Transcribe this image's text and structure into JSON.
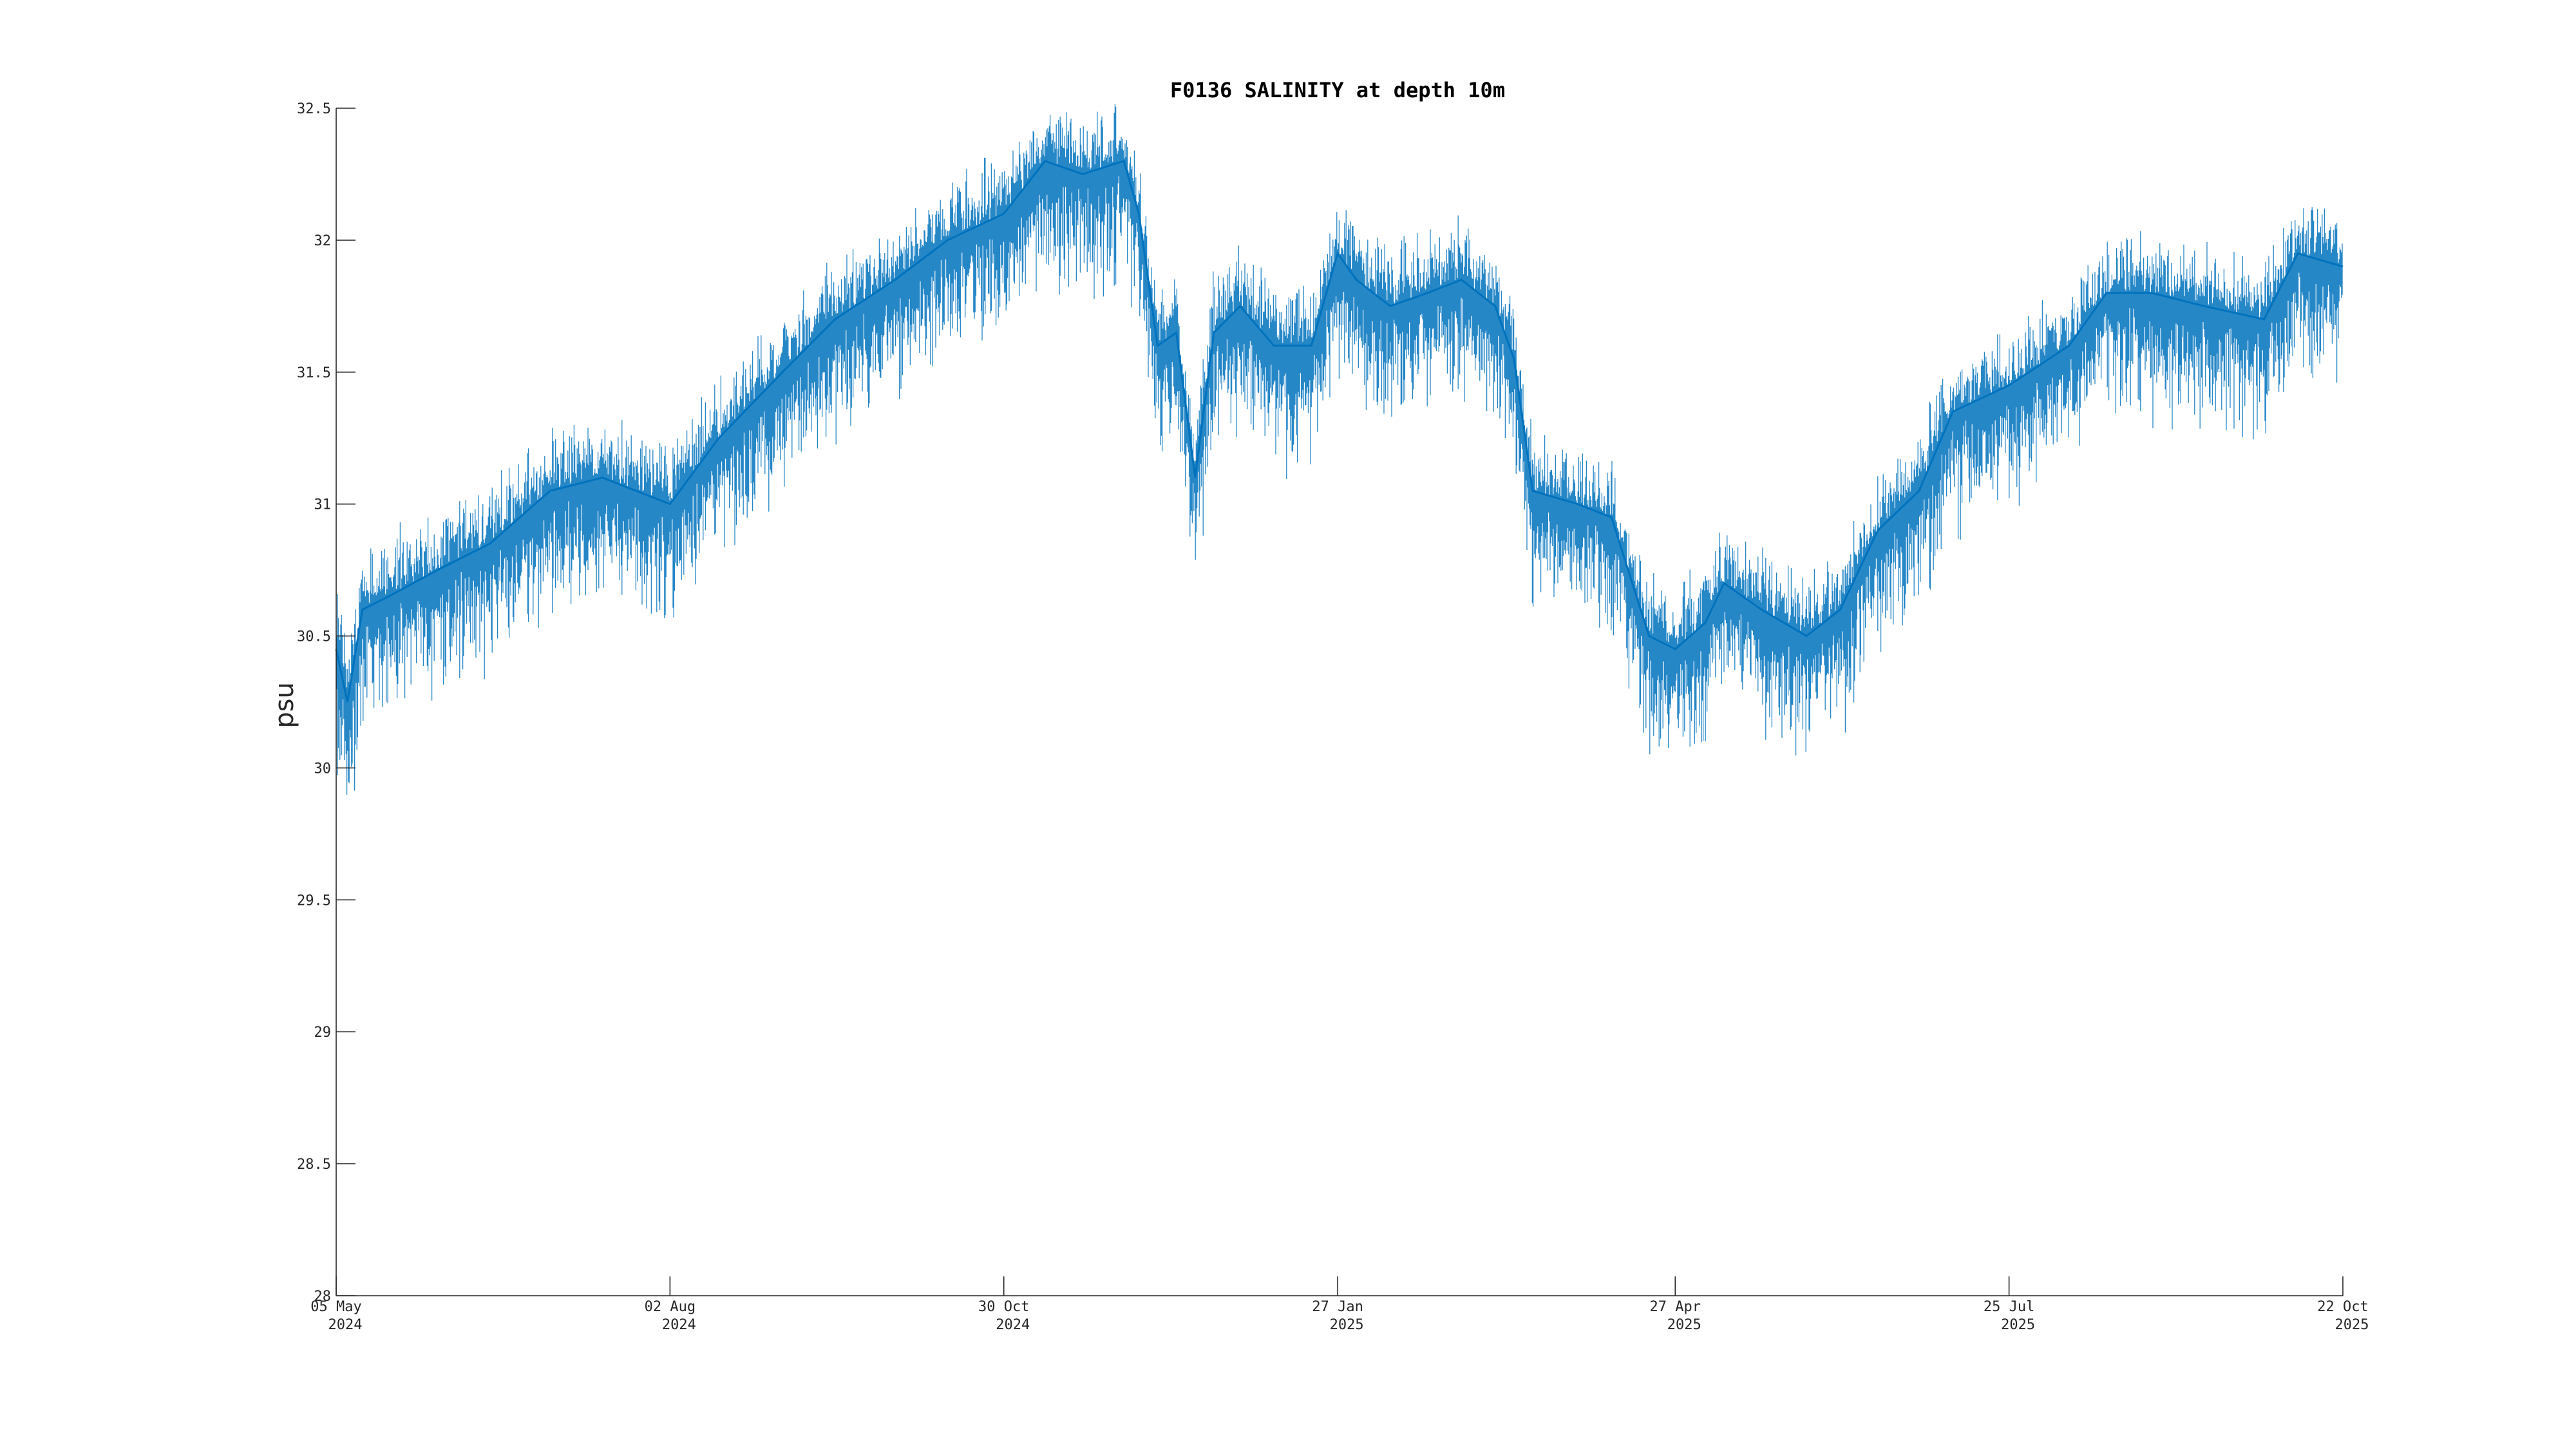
{
  "chart_data": {
    "type": "line",
    "title": "F0136 SALINITY at depth 10m",
    "xlabel": "",
    "ylabel": "psu",
    "ylim": [
      28,
      32.5
    ],
    "xlim": [
      "2024-05-05",
      "2025-10-22"
    ],
    "y_ticks": [
      {
        "value": 28,
        "label": "28"
      },
      {
        "value": 28.5,
        "label": "28.5"
      },
      {
        "value": 29,
        "label": "29"
      },
      {
        "value": 29.5,
        "label": "29.5"
      },
      {
        "value": 30,
        "label": "30"
      },
      {
        "value": 30.5,
        "label": "30.5"
      },
      {
        "value": 31,
        "label": "31"
      },
      {
        "value": 31.5,
        "label": "31.5"
      },
      {
        "value": 32,
        "label": "32"
      },
      {
        "value": 32.5,
        "label": "32.5"
      }
    ],
    "x_ticks": [
      {
        "date": "2024-05-05",
        "line1": "05 May",
        "line2": "2024"
      },
      {
        "date": "2024-08-02",
        "line1": "02 Aug",
        "line2": "2024"
      },
      {
        "date": "2024-10-30",
        "line1": "30 Oct",
        "line2": "2024"
      },
      {
        "date": "2025-01-27",
        "line1": "27 Jan",
        "line2": "2025"
      },
      {
        "date": "2025-04-27",
        "line1": "27 Apr",
        "line2": "2025"
      },
      {
        "date": "2025-07-25",
        "line1": "25 Jul",
        "line2": "2025"
      },
      {
        "date": "2025-10-22",
        "line1": "22 Oct",
        "line2": "2025"
      }
    ],
    "grid": false,
    "colors": {
      "series": "#0072BD",
      "axis": "#262626"
    },
    "series": [
      {
        "x": [
          "2024-05-05",
          "2024-05-08",
          "2024-05-12",
          "2024-05-19",
          "2024-06-01",
          "2024-06-15",
          "2024-07-01",
          "2024-07-15",
          "2024-08-02",
          "2024-08-15",
          "2024-09-01",
          "2024-09-15",
          "2024-10-01",
          "2024-10-15",
          "2024-10-30",
          "2024-11-10",
          "2024-11-20",
          "2024-12-01",
          "2024-12-05",
          "2024-12-10",
          "2024-12-15",
          "2024-12-20",
          "2024-12-25",
          "2025-01-01",
          "2025-01-10",
          "2025-01-20",
          "2025-01-27",
          "2025-02-01",
          "2025-02-10",
          "2025-02-20",
          "2025-03-01",
          "2025-03-10",
          "2025-03-15",
          "2025-03-20",
          "2025-04-01",
          "2025-04-10",
          "2025-04-20",
          "2025-04-27",
          "2025-05-05",
          "2025-05-10",
          "2025-05-20",
          "2025-06-01",
          "2025-06-10",
          "2025-06-20",
          "2025-07-01",
          "2025-07-10",
          "2025-07-25",
          "2025-08-10",
          "2025-08-20",
          "2025-09-01",
          "2025-09-15",
          "2025-10-01",
          "2025-10-10",
          "2025-10-22"
        ],
        "y": [
          30.45,
          30.25,
          30.6,
          30.65,
          30.75,
          30.85,
          31.05,
          31.1,
          31.0,
          31.25,
          31.5,
          31.7,
          31.85,
          32.0,
          32.1,
          32.3,
          32.25,
          32.3,
          32.1,
          31.6,
          31.65,
          31.1,
          31.65,
          31.75,
          31.6,
          31.6,
          31.95,
          31.85,
          31.75,
          31.8,
          31.85,
          31.75,
          31.55,
          31.05,
          31.0,
          30.95,
          30.5,
          30.45,
          30.55,
          30.7,
          30.6,
          30.5,
          30.6,
          30.9,
          31.05,
          31.35,
          31.45,
          31.6,
          31.8,
          31.8,
          31.75,
          31.7,
          31.95,
          31.9
        ]
      }
    ]
  }
}
